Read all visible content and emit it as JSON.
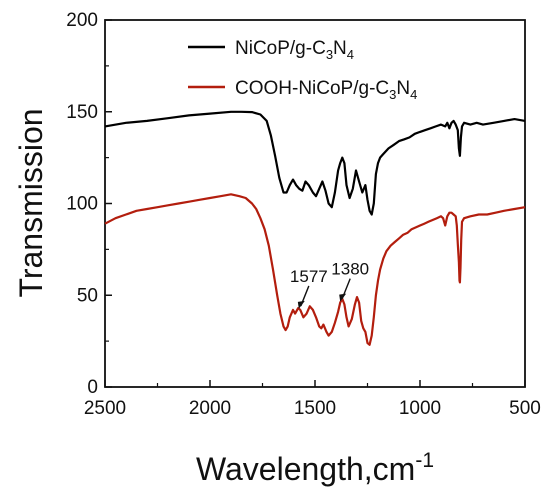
{
  "chart_data": {
    "type": "line",
    "title": "",
    "xlabel": "Wavelength,cm",
    "xlabel_sup": "-1",
    "ylabel": "Transmission",
    "xlim": [
      2500,
      500
    ],
    "ylim": [
      0,
      200
    ],
    "x_reversed": true,
    "grid": false,
    "legend_position": "top-right",
    "x_ticks": [
      "2500",
      "2000",
      "1500",
      "1000",
      "500"
    ],
    "y_ticks": [
      "0",
      "50",
      "100",
      "150",
      "200"
    ],
    "series": [
      {
        "name": "NiCoP/g-C3N4",
        "legend": {
          "pre": "NiCoP/g-C",
          "sub1": "3",
          "mid": "N",
          "sub2": "4"
        },
        "color": "#000000",
        "points": [
          [
            2500,
            142
          ],
          [
            2400,
            144
          ],
          [
            2300,
            145
          ],
          [
            2200,
            146.5
          ],
          [
            2100,
            148
          ],
          [
            2000,
            149
          ],
          [
            1900,
            150
          ],
          [
            1850,
            150
          ],
          [
            1800,
            149.8
          ],
          [
            1760,
            148.5
          ],
          [
            1730,
            145
          ],
          [
            1710,
            137
          ],
          [
            1690,
            126
          ],
          [
            1670,
            114
          ],
          [
            1650,
            106
          ],
          [
            1635,
            106
          ],
          [
            1620,
            110
          ],
          [
            1605,
            113
          ],
          [
            1590,
            110
          ],
          [
            1575,
            108
          ],
          [
            1560,
            107
          ],
          [
            1545,
            112
          ],
          [
            1530,
            110
          ],
          [
            1510,
            106
          ],
          [
            1495,
            104
          ],
          [
            1480,
            108
          ],
          [
            1465,
            112
          ],
          [
            1450,
            107
          ],
          [
            1435,
            100
          ],
          [
            1420,
            98
          ],
          [
            1405,
            106
          ],
          [
            1390,
            118
          ],
          [
            1380,
            122
          ],
          [
            1370,
            125
          ],
          [
            1360,
            122
          ],
          [
            1350,
            110
          ],
          [
            1335,
            103
          ],
          [
            1320,
            108
          ],
          [
            1305,
            118
          ],
          [
            1290,
            112
          ],
          [
            1275,
            106
          ],
          [
            1260,
            110
          ],
          [
            1250,
            102
          ],
          [
            1240,
            96
          ],
          [
            1230,
            94
          ],
          [
            1220,
            100
          ],
          [
            1210,
            116
          ],
          [
            1200,
            122
          ],
          [
            1190,
            125
          ],
          [
            1175,
            127
          ],
          [
            1150,
            130
          ],
          [
            1125,
            132
          ],
          [
            1100,
            134
          ],
          [
            1075,
            135
          ],
          [
            1050,
            136
          ],
          [
            1025,
            138
          ],
          [
            1000,
            139
          ],
          [
            975,
            140
          ],
          [
            950,
            141
          ],
          [
            925,
            142
          ],
          [
            900,
            143
          ],
          [
            880,
            142
          ],
          [
            870,
            144
          ],
          [
            860,
            141
          ],
          [
            850,
            144
          ],
          [
            840,
            145
          ],
          [
            830,
            143
          ],
          [
            820,
            140
          ],
          [
            815,
            130
          ],
          [
            810,
            126
          ],
          [
            805,
            136
          ],
          [
            800,
            142
          ],
          [
            790,
            144
          ],
          [
            760,
            143
          ],
          [
            730,
            144
          ],
          [
            700,
            143
          ],
          [
            650,
            144
          ],
          [
            600,
            145
          ],
          [
            550,
            146
          ],
          [
            500,
            145
          ]
        ]
      },
      {
        "name": "COOH-NiCoP/g-C3N4",
        "legend": {
          "pre": "COOH-NiCoP/g-C",
          "sub1": "3",
          "mid": "N",
          "sub2": "4"
        },
        "color": "#b31e0e",
        "points": [
          [
            2500,
            89
          ],
          [
            2450,
            92
          ],
          [
            2400,
            94
          ],
          [
            2350,
            96
          ],
          [
            2300,
            97
          ],
          [
            2250,
            98
          ],
          [
            2200,
            99
          ],
          [
            2150,
            100
          ],
          [
            2100,
            101
          ],
          [
            2050,
            102
          ],
          [
            2000,
            103
          ],
          [
            1950,
            104
          ],
          [
            1900,
            105
          ],
          [
            1860,
            104
          ],
          [
            1830,
            103
          ],
          [
            1800,
            100
          ],
          [
            1780,
            97
          ],
          [
            1760,
            92
          ],
          [
            1740,
            86
          ],
          [
            1720,
            77
          ],
          [
            1700,
            64
          ],
          [
            1680,
            50
          ],
          [
            1665,
            40
          ],
          [
            1650,
            33
          ],
          [
            1640,
            31
          ],
          [
            1630,
            33
          ],
          [
            1620,
            38
          ],
          [
            1605,
            42
          ],
          [
            1595,
            40
          ],
          [
            1580,
            43
          ],
          [
            1570,
            42
          ],
          [
            1555,
            38
          ],
          [
            1540,
            40
          ],
          [
            1525,
            44
          ],
          [
            1510,
            42
          ],
          [
            1495,
            38
          ],
          [
            1480,
            33
          ],
          [
            1470,
            32
          ],
          [
            1460,
            34
          ],
          [
            1445,
            30
          ],
          [
            1435,
            28
          ],
          [
            1420,
            30
          ],
          [
            1405,
            35
          ],
          [
            1390,
            41
          ],
          [
            1380,
            46
          ],
          [
            1370,
            48
          ],
          [
            1360,
            45
          ],
          [
            1350,
            38
          ],
          [
            1340,
            33
          ],
          [
            1325,
            37
          ],
          [
            1310,
            45
          ],
          [
            1300,
            49
          ],
          [
            1290,
            46
          ],
          [
            1280,
            36
          ],
          [
            1270,
            32
          ],
          [
            1260,
            30
          ],
          [
            1250,
            24
          ],
          [
            1240,
            23
          ],
          [
            1230,
            28
          ],
          [
            1220,
            38
          ],
          [
            1210,
            50
          ],
          [
            1200,
            58
          ],
          [
            1190,
            64
          ],
          [
            1175,
            70
          ],
          [
            1160,
            74
          ],
          [
            1140,
            77
          ],
          [
            1120,
            79
          ],
          [
            1100,
            81
          ],
          [
            1080,
            83
          ],
          [
            1060,
            84
          ],
          [
            1040,
            86
          ],
          [
            1020,
            87
          ],
          [
            1000,
            88
          ],
          [
            980,
            89
          ],
          [
            960,
            90
          ],
          [
            940,
            91
          ],
          [
            920,
            92
          ],
          [
            900,
            93
          ],
          [
            890,
            92
          ],
          [
            880,
            88
          ],
          [
            870,
            93
          ],
          [
            860,
            95
          ],
          [
            850,
            95
          ],
          [
            840,
            94
          ],
          [
            830,
            93
          ],
          [
            825,
            88
          ],
          [
            820,
            78
          ],
          [
            815,
            68
          ],
          [
            812,
            58
          ],
          [
            810,
            57
          ],
          [
            807,
            65
          ],
          [
            804,
            80
          ],
          [
            800,
            90
          ],
          [
            790,
            92
          ],
          [
            760,
            93
          ],
          [
            720,
            94
          ],
          [
            680,
            94
          ],
          [
            640,
            95
          ],
          [
            600,
            96
          ],
          [
            550,
            97
          ],
          [
            500,
            98
          ]
        ]
      }
    ],
    "annotations": [
      {
        "text": "1577",
        "x": 1577,
        "y": 42
      },
      {
        "text": "1380",
        "x": 1380,
        "y": 46
      }
    ]
  }
}
